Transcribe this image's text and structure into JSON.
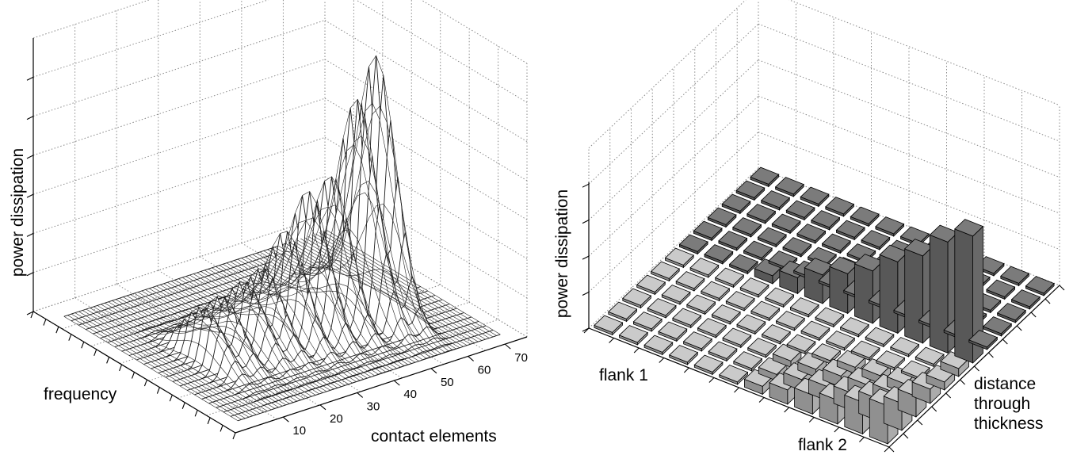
{
  "chart_data": [
    {
      "type": "surface3d",
      "title": "",
      "xlabel": "contact elements",
      "ylabel": "frequency",
      "zlabel": "power dissipation",
      "x_ticks": [
        "10",
        "20",
        "30",
        "40",
        "50",
        "60",
        "70"
      ],
      "x_range": [
        1,
        72
      ],
      "frequency_rows": 24,
      "grid": true,
      "peaks": [
        {
          "contact_element": 12,
          "frequency_row": 10,
          "height": 0.22
        },
        {
          "contact_element": 17,
          "frequency_row": 10,
          "height": 0.24
        },
        {
          "contact_element": 23,
          "frequency_row": 10,
          "height": 0.27
        },
        {
          "contact_element": 28,
          "frequency_row": 10,
          "height": 0.3
        },
        {
          "contact_element": 34,
          "frequency_row": 10,
          "height": 0.42
        },
        {
          "contact_element": 40,
          "frequency_row": 10,
          "height": 0.55
        },
        {
          "contact_element": 46,
          "frequency_row": 10,
          "height": 0.58
        },
        {
          "contact_element": 53,
          "frequency_row": 10,
          "height": 0.85
        },
        {
          "contact_element": 58,
          "frequency_row": 10,
          "height": 1.0
        }
      ]
    },
    {
      "type": "bar3d",
      "title": "",
      "xlabel": "distance through thickness",
      "zlabel": "power dissipation",
      "category_labels": [
        "flank 1",
        "flank 2"
      ],
      "grid": true,
      "colors": {
        "flank1": "#b4b4b4",
        "flank2": "#6e6e6e"
      },
      "flank_1": [
        [
          0.05,
          0.0,
          0.0,
          0.0,
          0.0,
          0.0,
          0.0,
          0.0,
          0.0,
          0.0,
          0.0,
          0.0
        ],
        [
          0.05,
          0.0,
          0.0,
          0.0,
          0.0,
          0.0,
          0.0,
          0.0,
          0.0,
          0.0,
          0.0,
          0.0
        ],
        [
          0.09,
          0.06,
          0.05,
          0.04,
          0.02,
          0.0,
          0.0,
          0.0,
          0.0,
          0.0,
          0.0,
          0.0
        ],
        [
          0.13,
          0.1,
          0.08,
          0.07,
          0.05,
          0.04,
          0.0,
          0.0,
          0.0,
          0.0,
          0.0,
          0.0
        ],
        [
          0.17,
          0.14,
          0.11,
          0.09,
          0.07,
          0.04,
          0.0,
          0.0,
          0.0,
          0.0,
          0.0,
          0.0
        ],
        [
          0.24,
          0.2,
          0.15,
          0.12,
          0.09,
          0.05,
          0.0,
          0.0,
          0.0,
          0.0,
          0.0,
          0.0
        ]
      ],
      "flank_2": [
        [
          0.0,
          0.0,
          0.0,
          0.0,
          0.0,
          0.0,
          0.0,
          0.0,
          0.0,
          0.0,
          0.0,
          0.0
        ],
        [
          0.0,
          0.0,
          0.0,
          0.0,
          0.0,
          0.0,
          0.0,
          0.0,
          0.0,
          0.0,
          0.0,
          0.0
        ],
        [
          0.0,
          0.0,
          0.0,
          0.0,
          0.0,
          0.0,
          0.0,
          0.0,
          0.0,
          0.0,
          0.0,
          0.0
        ],
        [
          0.0,
          0.0,
          0.0,
          0.0,
          0.0,
          0.0,
          0.0,
          0.0,
          0.0,
          0.0,
          0.0,
          0.0
        ],
        [
          0.0,
          0.0,
          0.0,
          0.0,
          0.0,
          0.0,
          0.0,
          0.0,
          0.0,
          0.0,
          0.0,
          0.0
        ],
        [
          0.8,
          0.7,
          0.55,
          0.45,
          0.33,
          0.25,
          0.18,
          0.1,
          0.05,
          0.0,
          0.0,
          0.0
        ]
      ]
    }
  ]
}
